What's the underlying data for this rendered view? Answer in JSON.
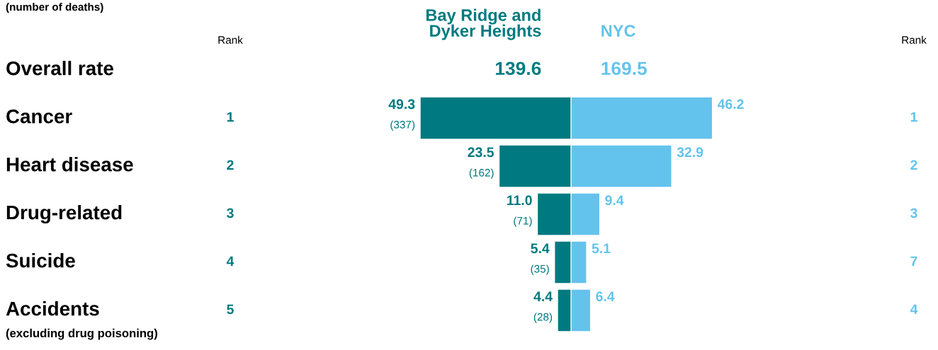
{
  "chart_data": [
    {
      "type": "bar",
      "orientation": "horizontal",
      "subtitle": "(number of deaths)",
      "categories": [
        "Overall rate",
        "Cancer",
        "Heart disease",
        "Drug-related",
        "Suicide",
        "Accidents\n(excluding drug poisoning)"
      ],
      "series": [
        {
          "name": "Bay Ridge and\nDyker Heights",
          "color": "#007a80",
          "values": [
            null,
            49.3,
            23.5,
            11.0,
            5.4,
            4.4
          ],
          "value_labels": [
            "139.6",
            "49.3\n(337)",
            "23.5\n(162)",
            "11.0\n(71)",
            "5.4\n(35)",
            "4.4\n(28)"
          ]
        }
      ],
      "annotations": [
        "Rank",
        "1",
        "2",
        "3",
        "4",
        "5"
      ],
      "legend": false
    },
    {
      "type": "bar",
      "orientation": "horizontal",
      "series": [
        {
          "name": "NYC",
          "color": "#63c3ec",
          "values": [
            null,
            46.2,
            32.9,
            9.4,
            5.1,
            6.4
          ],
          "value_labels": [
            "169.5",
            "46.2",
            "32.9",
            "9.4",
            "5.1",
            "6.4"
          ]
        }
      ],
      "annotations": [
        "Rank",
        "1",
        "2",
        "3",
        "7",
        "4"
      ],
      "legend": false
    }
  ]
}
